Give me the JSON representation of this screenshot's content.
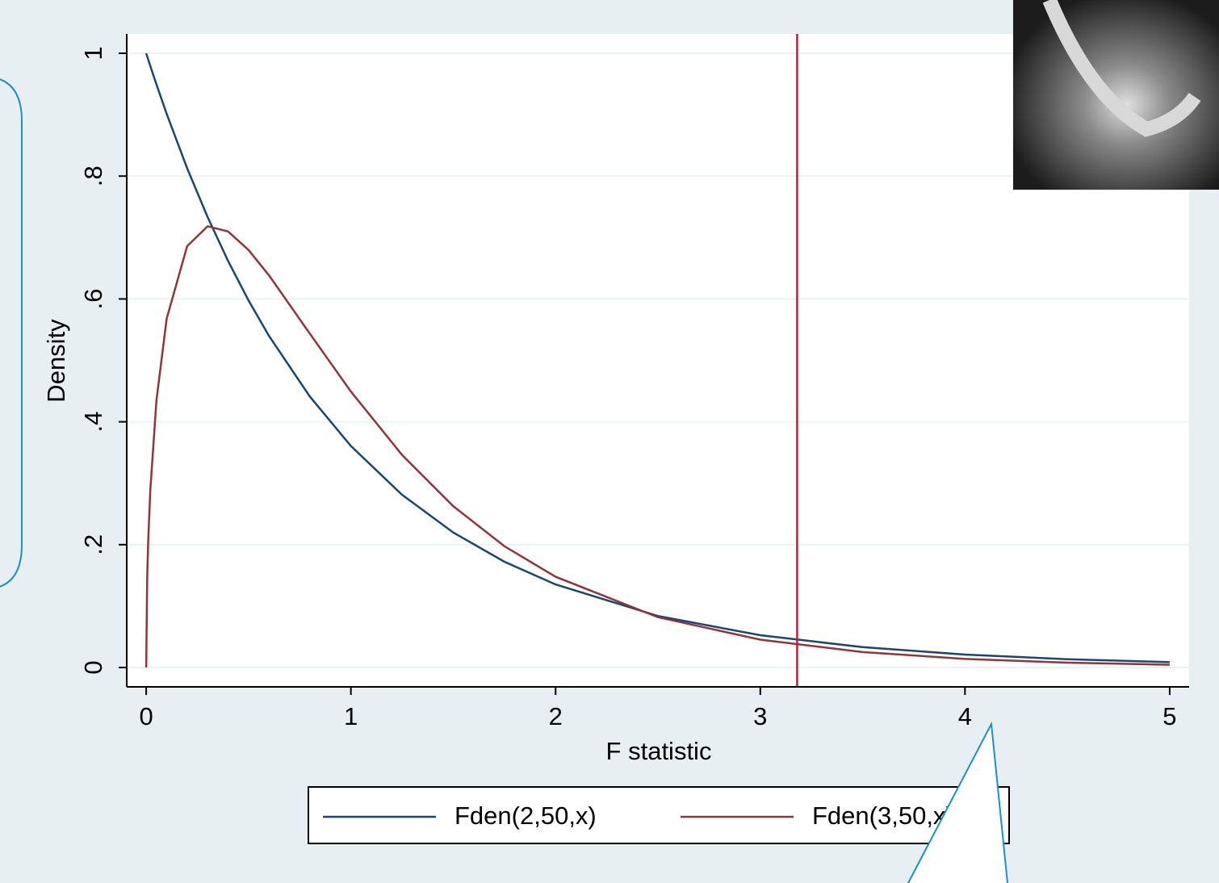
{
  "chart_data": {
    "type": "line",
    "x": [
      0,
      0.005,
      0.01,
      0.02,
      0.05,
      0.1,
      0.2,
      0.3,
      0.4,
      0.5,
      0.6,
      0.8,
      1,
      1.25,
      1.5,
      1.75,
      2,
      2.5,
      3,
      3.5,
      4,
      4.5,
      5
    ],
    "series": [
      {
        "name": "Fden(2,50,x)",
        "color": "#1a476f",
        "values": [
          1,
          0.9948,
          0.98965,
          0.97942,
          0.94938,
          0.90141,
          0.8129,
          0.73333,
          0.66186,
          0.5976,
          0.53977,
          0.4409,
          0.3607,
          0.28124,
          0.21983,
          0.17222,
          0.1352,
          0.0839,
          0.05254,
          0.03315,
          0.02109,
          0.01352,
          0.00873
        ]
      },
      {
        "name": "Fden(3,50,x)",
        "color": "#90353b",
        "values": [
          0,
          0.1476,
          0.20709,
          0.28826,
          0.43459,
          0.56783,
          0.68594,
          0.71831,
          0.70984,
          0.67978,
          0.63839,
          0.54328,
          0.44929,
          0.34612,
          0.26265,
          0.19743,
          0.14774,
          0.08191,
          0.04537,
          0.02519,
          0.01407,
          0.00792,
          0.00449
        ]
      }
    ],
    "xlabel": "F statistic",
    "ylabel": "Density",
    "xlim": [
      -0.095,
      5.095
    ],
    "ylim": [
      -0.0315,
      1.0315
    ],
    "xticks": [
      0,
      1,
      2,
      3,
      4,
      5
    ],
    "yticks": [
      0,
      {
        "value": 0.2,
        "label": ".2"
      },
      {
        "value": 0.4,
        "label": ".4"
      },
      {
        "value": 0.6,
        "label": ".6"
      },
      {
        "value": 0.8,
        "label": ".8"
      },
      1
    ],
    "xline": 3.18,
    "xline_color": "#b8203e",
    "grid": true,
    "legend": "bottom"
  }
}
